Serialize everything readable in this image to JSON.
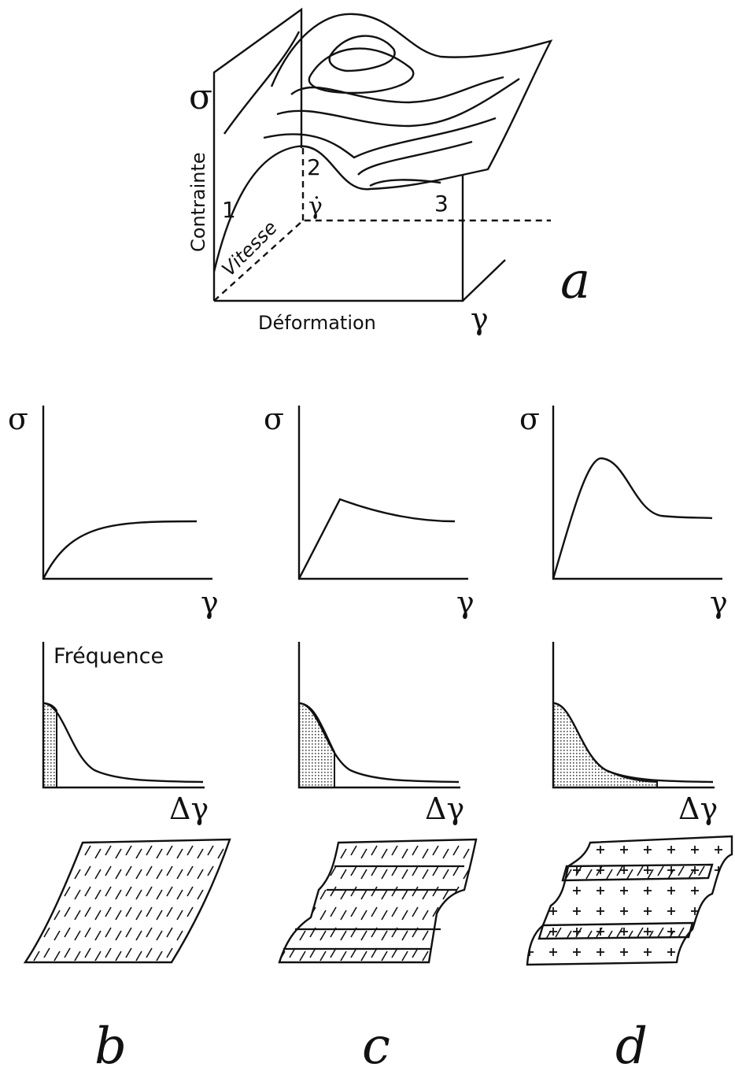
{
  "panel_a": {
    "stress_symbol": "σ",
    "y_label": "Contrainte",
    "depth_label": "Vitesse",
    "x_label": "Déformation",
    "rate_symbol": "γ̇",
    "strain_symbol": "γ",
    "zones": [
      "1",
      "2",
      "3"
    ],
    "letter": "a"
  },
  "stress_curves": [
    {
      "y_symbol": "σ",
      "x_symbol": "γ"
    },
    {
      "y_symbol": "σ",
      "x_symbol": "γ"
    },
    {
      "y_symbol": "σ",
      "x_symbol": "γ"
    }
  ],
  "frequency_curves": {
    "y_label": "Fréquence",
    "x_symbols": [
      "Δγ",
      "Δγ",
      "Δγ"
    ]
  },
  "letters": [
    "b",
    "c",
    "d"
  ]
}
